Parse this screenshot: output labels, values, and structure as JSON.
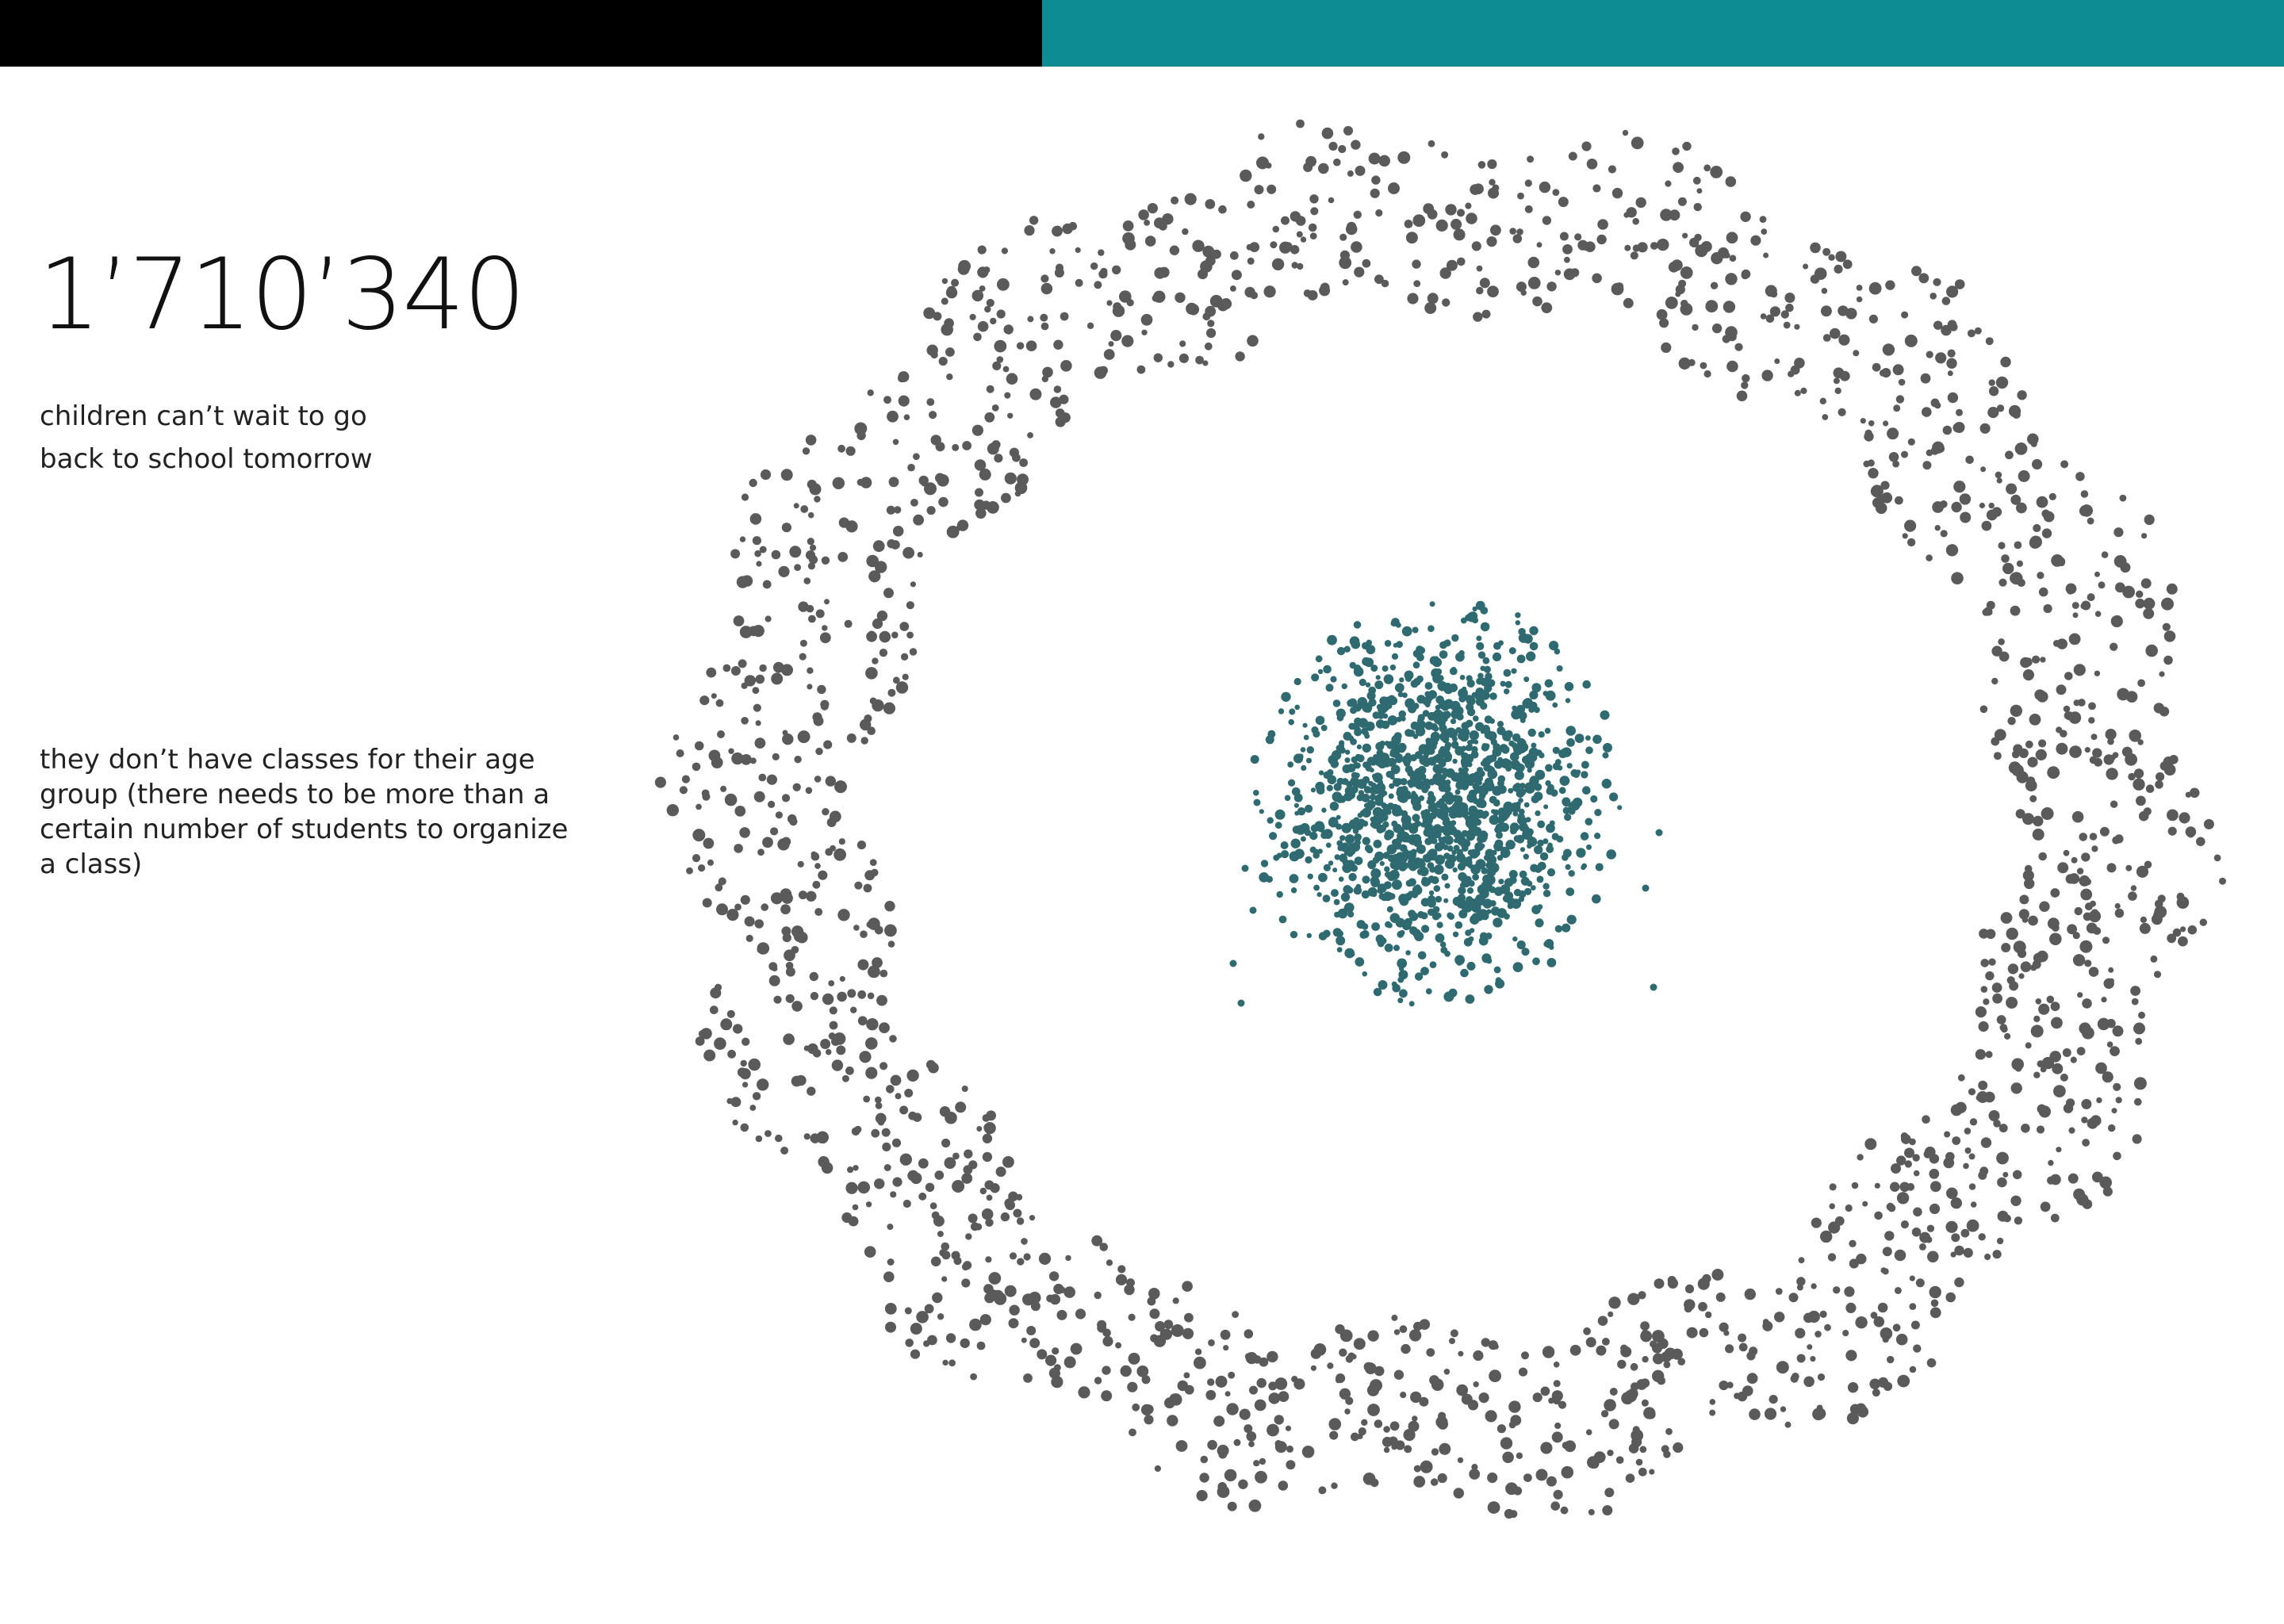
{
  "header": {
    "left_color": "#000000",
    "right_color": "#0e8c94"
  },
  "headline": {
    "number": "1’710’340",
    "caption_lines": [
      "children can’t wait to go",
      "back to school tomorrow"
    ]
  },
  "note": {
    "lines": [
      "they don’t have classes for their age",
      "group (there needs to be more than a",
      "certain number of students to organize",
      "a class)"
    ]
  },
  "visual": {
    "outer_ring_dot_color": "#5a5a5a",
    "inner_cluster_dot_color": "#2e6a70"
  }
}
